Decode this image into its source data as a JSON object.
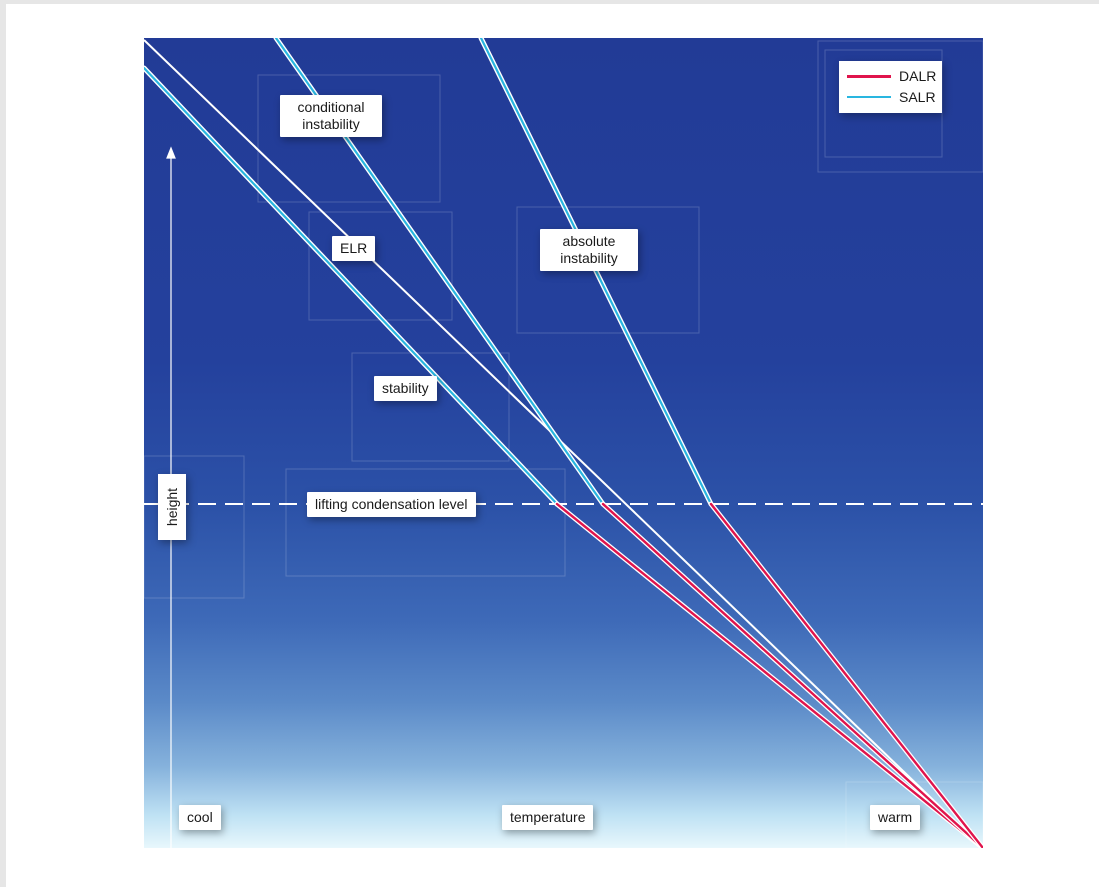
{
  "legend": {
    "items": [
      {
        "label": "DALR",
        "color": "#e0144c"
      },
      {
        "label": "SALR",
        "color": "#29b6e0"
      }
    ]
  },
  "labels": {
    "conditional_instability": "conditional\ninstability",
    "elr": "ELR",
    "absolute_instability": "absolute\ninstability",
    "stability": "stability",
    "lcl": "lifting condensation level",
    "height": "height",
    "cool": "cool",
    "temperature": "temperature",
    "warm": "warm"
  },
  "colors": {
    "dalr": "#e0144c",
    "salr": "#29b6e0",
    "elr": "#ffffff",
    "background_top": "#223b96",
    "background_bottom": "#e8f7fc"
  }
}
